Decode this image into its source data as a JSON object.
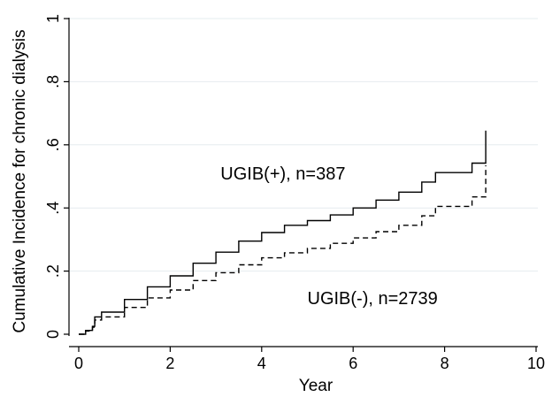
{
  "chart_data": {
    "type": "line",
    "title": "",
    "xlabel": "Year",
    "ylabel": "Cumulative Incidence for chronic dialysis",
    "xlim": [
      0,
      10
    ],
    "ylim": [
      0,
      1
    ],
    "x_ticks": [
      "0",
      "2",
      "4",
      "6",
      "8",
      "10"
    ],
    "y_ticks": [
      "0",
      ".2",
      ".4",
      ".6",
      ".8",
      "1"
    ],
    "grid": true,
    "legend": "none",
    "series": [
      {
        "name": "UGIB(+), n=387",
        "line_style": "solid",
        "color": "#000000",
        "points": [
          [
            0.0,
            0.0
          ],
          [
            0.15,
            0.012
          ],
          [
            0.3,
            0.025
          ],
          [
            0.35,
            0.055
          ],
          [
            0.5,
            0.07
          ],
          [
            1.0,
            0.11
          ],
          [
            1.5,
            0.15
          ],
          [
            2.0,
            0.185
          ],
          [
            2.5,
            0.225
          ],
          [
            3.0,
            0.26
          ],
          [
            3.5,
            0.295
          ],
          [
            4.0,
            0.322
          ],
          [
            4.5,
            0.345
          ],
          [
            5.0,
            0.36
          ],
          [
            5.5,
            0.378
          ],
          [
            6.0,
            0.4
          ],
          [
            6.5,
            0.425
          ],
          [
            7.0,
            0.45
          ],
          [
            7.5,
            0.482
          ],
          [
            7.8,
            0.512
          ],
          [
            8.6,
            0.512
          ],
          [
            8.6,
            0.542
          ],
          [
            8.9,
            0.542
          ],
          [
            8.9,
            0.645
          ]
        ]
      },
      {
        "name": "UGIB(-), n=2739",
        "line_style": "dashed",
        "color": "#000000",
        "points": [
          [
            0.0,
            0.0
          ],
          [
            0.15,
            0.01
          ],
          [
            0.3,
            0.022
          ],
          [
            0.35,
            0.045
          ],
          [
            0.5,
            0.055
          ],
          [
            1.0,
            0.085
          ],
          [
            1.5,
            0.115
          ],
          [
            2.0,
            0.14
          ],
          [
            2.5,
            0.17
          ],
          [
            3.0,
            0.195
          ],
          [
            3.5,
            0.22
          ],
          [
            4.0,
            0.242
          ],
          [
            4.5,
            0.258
          ],
          [
            5.0,
            0.272
          ],
          [
            5.5,
            0.288
          ],
          [
            6.0,
            0.305
          ],
          [
            6.5,
            0.325
          ],
          [
            7.0,
            0.345
          ],
          [
            7.5,
            0.375
          ],
          [
            7.8,
            0.405
          ],
          [
            8.6,
            0.405
          ],
          [
            8.6,
            0.435
          ],
          [
            8.9,
            0.435
          ],
          [
            8.9,
            0.535
          ]
        ]
      }
    ],
    "annotations": [
      {
        "text": "UGIB(+), n=387",
        "x": 3.1,
        "y": 0.49
      },
      {
        "text": "UGIB(-), n=2739",
        "x": 5.0,
        "y": 0.095
      }
    ]
  }
}
